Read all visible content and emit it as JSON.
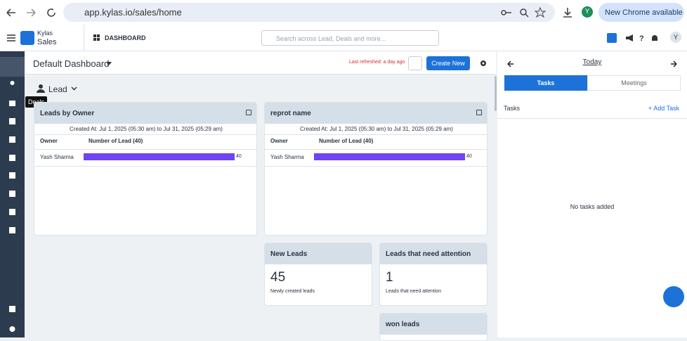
{
  "browser": {
    "url": "app.kylas.io/sales/home",
    "chrome_button": "New Chrome available",
    "profile": "Y"
  },
  "app": {
    "brand_small": "Kylas",
    "brand": "Sales",
    "section": "DASHBOARD",
    "search_placeholder": "Search across Lead, Deals and more...",
    "avatar": "Y"
  },
  "sidebar": {
    "tooltip": "Deals"
  },
  "dashboard": {
    "title": "Default Dashboard",
    "refreshed": "Last refreshed: a day ago",
    "create_button": "Create New",
    "entity": "Lead",
    "widgets": [
      {
        "title": "Leads by Owner",
        "created": "Created At: Jul 1, 2025 (05:30 am) to Jul 31, 2025 (05:29 am)",
        "columns": [
          "Owner",
          "Number of Lead (40)"
        ],
        "rows": [
          {
            "owner": "Yash Sharma",
            "value": 40
          }
        ]
      },
      {
        "title": "reprot name",
        "created": "Created At: Jul 1, 2025 (05:30 am) to Jul 31, 2025 (05:29 am)",
        "columns": [
          "Owner",
          "Number of Lead (40)"
        ],
        "rows": [
          {
            "owner": "Yash Sharma",
            "value": 40
          }
        ]
      }
    ],
    "kpis": [
      {
        "title": "New Leads",
        "value": 45,
        "caption": "Newly created leads"
      },
      {
        "title": "Leads that need attention",
        "value": 1,
        "caption": "Leads that need attention"
      },
      {
        "title": "won leads"
      }
    ]
  },
  "panel": {
    "date": "Today",
    "tabs": [
      "Tasks",
      "Meetings"
    ],
    "heading": "Tasks",
    "add": "+ Add Task",
    "empty": "No tasks added"
  }
}
